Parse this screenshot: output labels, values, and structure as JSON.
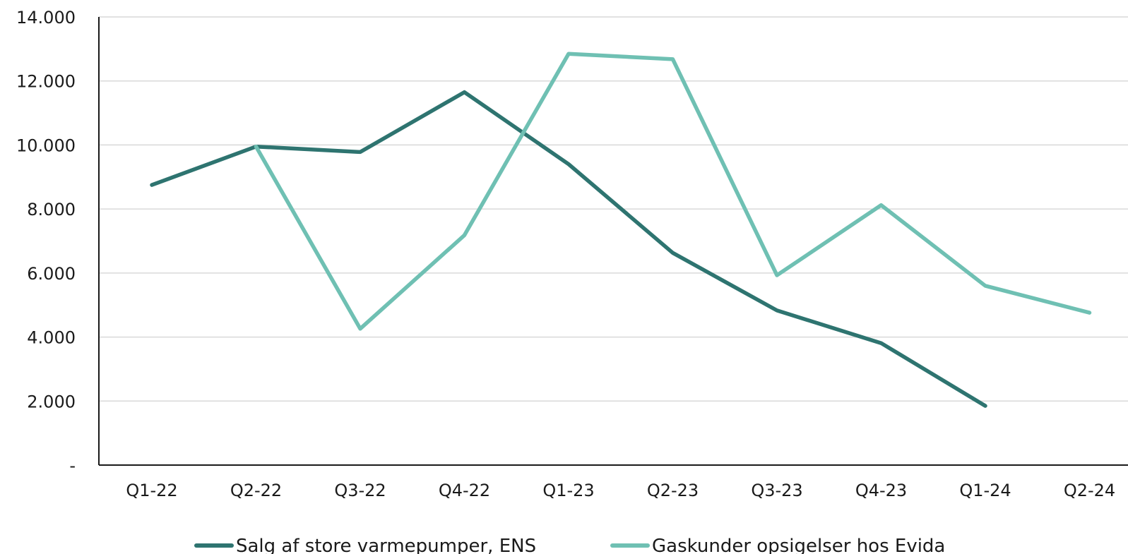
{
  "chart_data": {
    "type": "line",
    "title": "",
    "xlabel": "",
    "ylabel": "",
    "categories": [
      "Q1-22",
      "Q2-22",
      "Q3-22",
      "Q4-22",
      "Q1-23",
      "Q2-23",
      "Q3-23",
      "Q4-23",
      "Q1-24",
      "Q2-24"
    ],
    "ylim": [
      0,
      14000
    ],
    "yticks": [
      0,
      2000,
      4000,
      6000,
      8000,
      10000,
      12000,
      14000
    ],
    "ytick_labels": [
      "-",
      "2.000",
      "4.000",
      "6.000",
      "8.000",
      "10.000",
      "12.000",
      "14.000"
    ],
    "grid": true,
    "legend_position": "bottom",
    "series": [
      {
        "name": "Salg af store varmepumper, ENS",
        "color": "#2e7470",
        "values": [
          8750,
          9950,
          9780,
          11650,
          9400,
          6630,
          4830,
          3810,
          1850,
          null
        ]
      },
      {
        "name": "Gaskunder opsigelser hos Evida",
        "color": "#6fc0b3",
        "values": [
          null,
          9950,
          4260,
          7180,
          12850,
          12680,
          5930,
          8120,
          5600,
          4760
        ]
      }
    ]
  }
}
